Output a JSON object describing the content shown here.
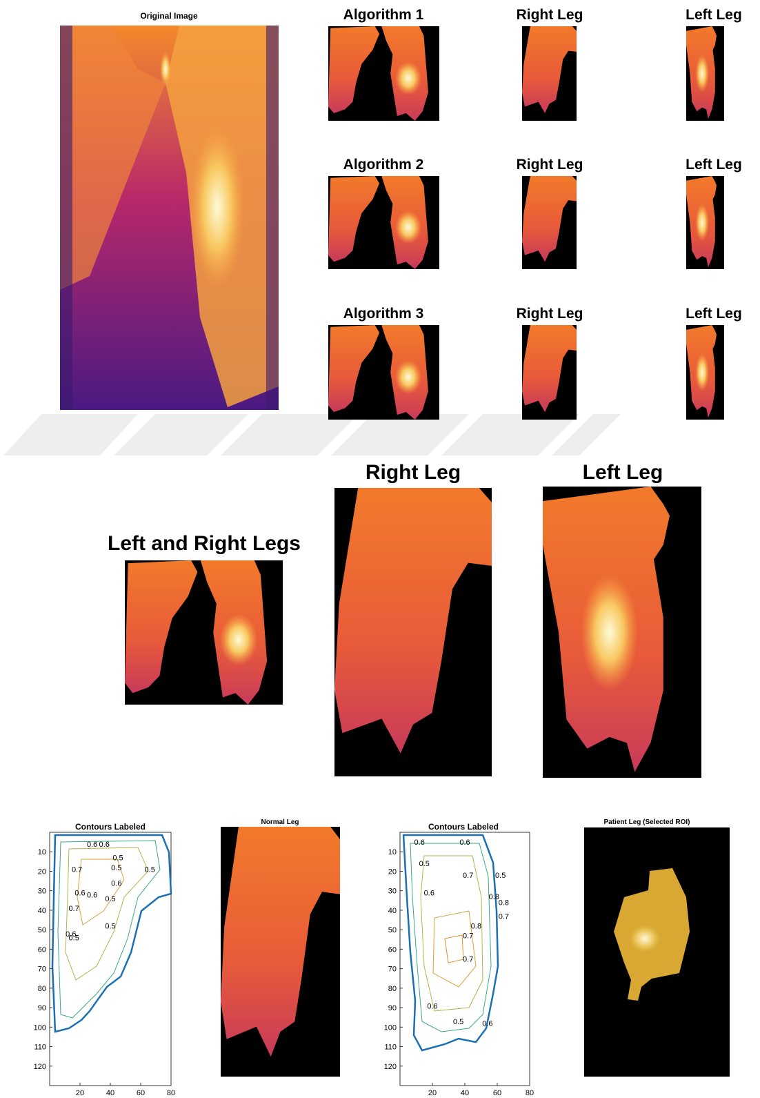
{
  "top": {
    "original_title": "Original Image",
    "rows": [
      {
        "algorithm": "Algorithm 1",
        "right_leg": "Right Leg",
        "left_leg": "Left Leg"
      },
      {
        "algorithm": "Algorithm 2",
        "right_leg": "Right Leg",
        "left_leg": "Left Leg"
      },
      {
        "algorithm": "Algorithm 3",
        "right_leg": "Right Leg",
        "left_leg": "Left Leg"
      }
    ]
  },
  "middle": {
    "combined_title": "Left and Right Legs",
    "right_leg_title": "Right Leg",
    "left_leg_title": "Left Leg"
  },
  "bottom": {
    "contour_normal": {
      "title": "Contours Labeled",
      "xlim": [
        0,
        80
      ],
      "ylim": [
        0,
        130
      ],
      "y_direction": "reverse",
      "xticks": [
        20,
        40,
        60,
        80
      ],
      "yticks": [
        10,
        20,
        30,
        40,
        50,
        60,
        70,
        80,
        90,
        100,
        110,
        120
      ],
      "labels": [
        0.6,
        0.6,
        0.5,
        0.5,
        0.7,
        0.6,
        0.5,
        0.6,
        0.6,
        0.7,
        0.5,
        0.5,
        0.6,
        0.5
      ]
    },
    "normal_title": "Normal Leg",
    "contour_patient": {
      "title": "Contours Labeled",
      "xlim": [
        0,
        80
      ],
      "ylim": [
        0,
        130
      ],
      "y_direction": "reverse",
      "xticks": [
        20,
        40,
        60,
        80
      ],
      "yticks": [
        10,
        20,
        30,
        40,
        50,
        60,
        70,
        80,
        90,
        100,
        110,
        120
      ],
      "labels": [
        0.6,
        0.6,
        0.5,
        0.7,
        0.6,
        0.8,
        0.8,
        0.7,
        0.8,
        0.7,
        0.7,
        0.5,
        0.6,
        0.5,
        0.6
      ]
    },
    "patient_title": "Patient Leg (Selected ROI)"
  }
}
